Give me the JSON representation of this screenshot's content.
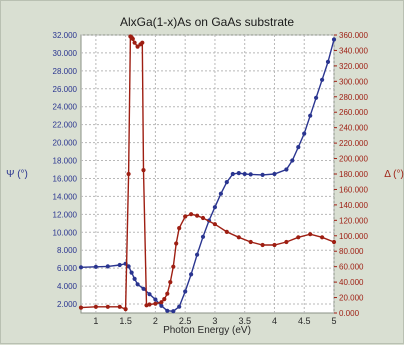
{
  "chart_data": {
    "type": "line",
    "title": "AlxGa(1-x)As on GaAs substrate",
    "xlabel": "Photon Energy (eV)",
    "xlim": [
      0.75,
      5.0
    ],
    "x_ticks": [
      "1",
      "1.5",
      "2",
      "2.5",
      "3",
      "3.5",
      "4",
      "4.5",
      "5"
    ],
    "x_tick_values": [
      1,
      1.5,
      2,
      2.5,
      3,
      3.5,
      4,
      4.5,
      5
    ],
    "grid": true,
    "y_left": {
      "label": "Ψ (°)",
      "ylim": [
        1000,
        32000
      ],
      "ticks": [
        "2.000",
        "4.000",
        "6.000",
        "8.000",
        "10.000",
        "12.000",
        "14.000",
        "16.000",
        "18.000",
        "20.000",
        "22.000",
        "24.000",
        "26.000",
        "28.000",
        "30.000",
        "32.000"
      ],
      "tick_values": [
        2000,
        4000,
        6000,
        8000,
        10000,
        12000,
        14000,
        16000,
        18000,
        20000,
        22000,
        24000,
        26000,
        28000,
        30000,
        32000
      ]
    },
    "y_right": {
      "label": "Δ (°)",
      "ylim": [
        0,
        360
      ],
      "ticks": [
        "0.000",
        "20.000",
        "40.000",
        "60.000",
        "80.000",
        "100.000",
        "120.000",
        "140.000",
        "160.000",
        "180.000",
        "200.000",
        "220.000",
        "240.000",
        "260.000",
        "280.000",
        "300.000",
        "320.000",
        "340.000",
        "360.000"
      ],
      "tick_values": [
        0,
        20,
        40,
        60,
        80,
        100,
        120,
        140,
        160,
        180,
        200,
        220,
        240,
        260,
        280,
        300,
        320,
        340,
        360
      ]
    },
    "series": [
      {
        "axis": "left",
        "color": "#2a3590",
        "x": [
          0.75,
          1.0,
          1.2,
          1.4,
          1.5,
          1.55,
          1.6,
          1.65,
          1.7,
          1.8,
          1.9,
          2.0,
          2.1,
          2.2,
          2.3,
          2.4,
          2.5,
          2.6,
          2.7,
          2.8,
          2.9,
          3.0,
          3.1,
          3.2,
          3.3,
          3.4,
          3.5,
          3.6,
          3.8,
          4.0,
          4.2,
          4.3,
          4.4,
          4.5,
          4.6,
          4.7,
          4.8,
          4.9,
          5.0
        ],
        "y": [
          6100,
          6150,
          6200,
          6350,
          6500,
          6200,
          5500,
          4800,
          4200,
          3700,
          3100,
          2500,
          1800,
          1250,
          1200,
          1700,
          3400,
          5300,
          7500,
          9500,
          11300,
          12800,
          14300,
          15600,
          16500,
          16600,
          16500,
          16450,
          16400,
          16500,
          17000,
          18000,
          19500,
          21000,
          23000,
          25000,
          27000,
          29000,
          31500
        ]
      },
      {
        "axis": "right",
        "color": "#9e1e12",
        "x": [
          0.75,
          1.0,
          1.2,
          1.4,
          1.5,
          1.55,
          1.58,
          1.6,
          1.62,
          1.65,
          1.7,
          1.75,
          1.78,
          1.8,
          1.85,
          1.9,
          2.0,
          2.1,
          2.15,
          2.2,
          2.25,
          2.3,
          2.35,
          2.4,
          2.5,
          2.6,
          2.7,
          2.8,
          3.0,
          3.2,
          3.4,
          3.6,
          3.8,
          4.0,
          4.2,
          4.4,
          4.6,
          4.8,
          5.0
        ],
        "y": [
          7,
          8,
          8,
          8,
          5,
          180,
          358,
          357,
          355,
          350,
          345,
          348,
          350,
          185,
          10,
          11,
          12,
          14,
          18,
          25,
          40,
          60,
          90,
          110,
          125,
          128,
          126,
          123,
          115,
          105,
          98,
          92,
          88,
          88,
          92,
          98,
          102,
          98,
          92
        ]
      }
    ]
  }
}
